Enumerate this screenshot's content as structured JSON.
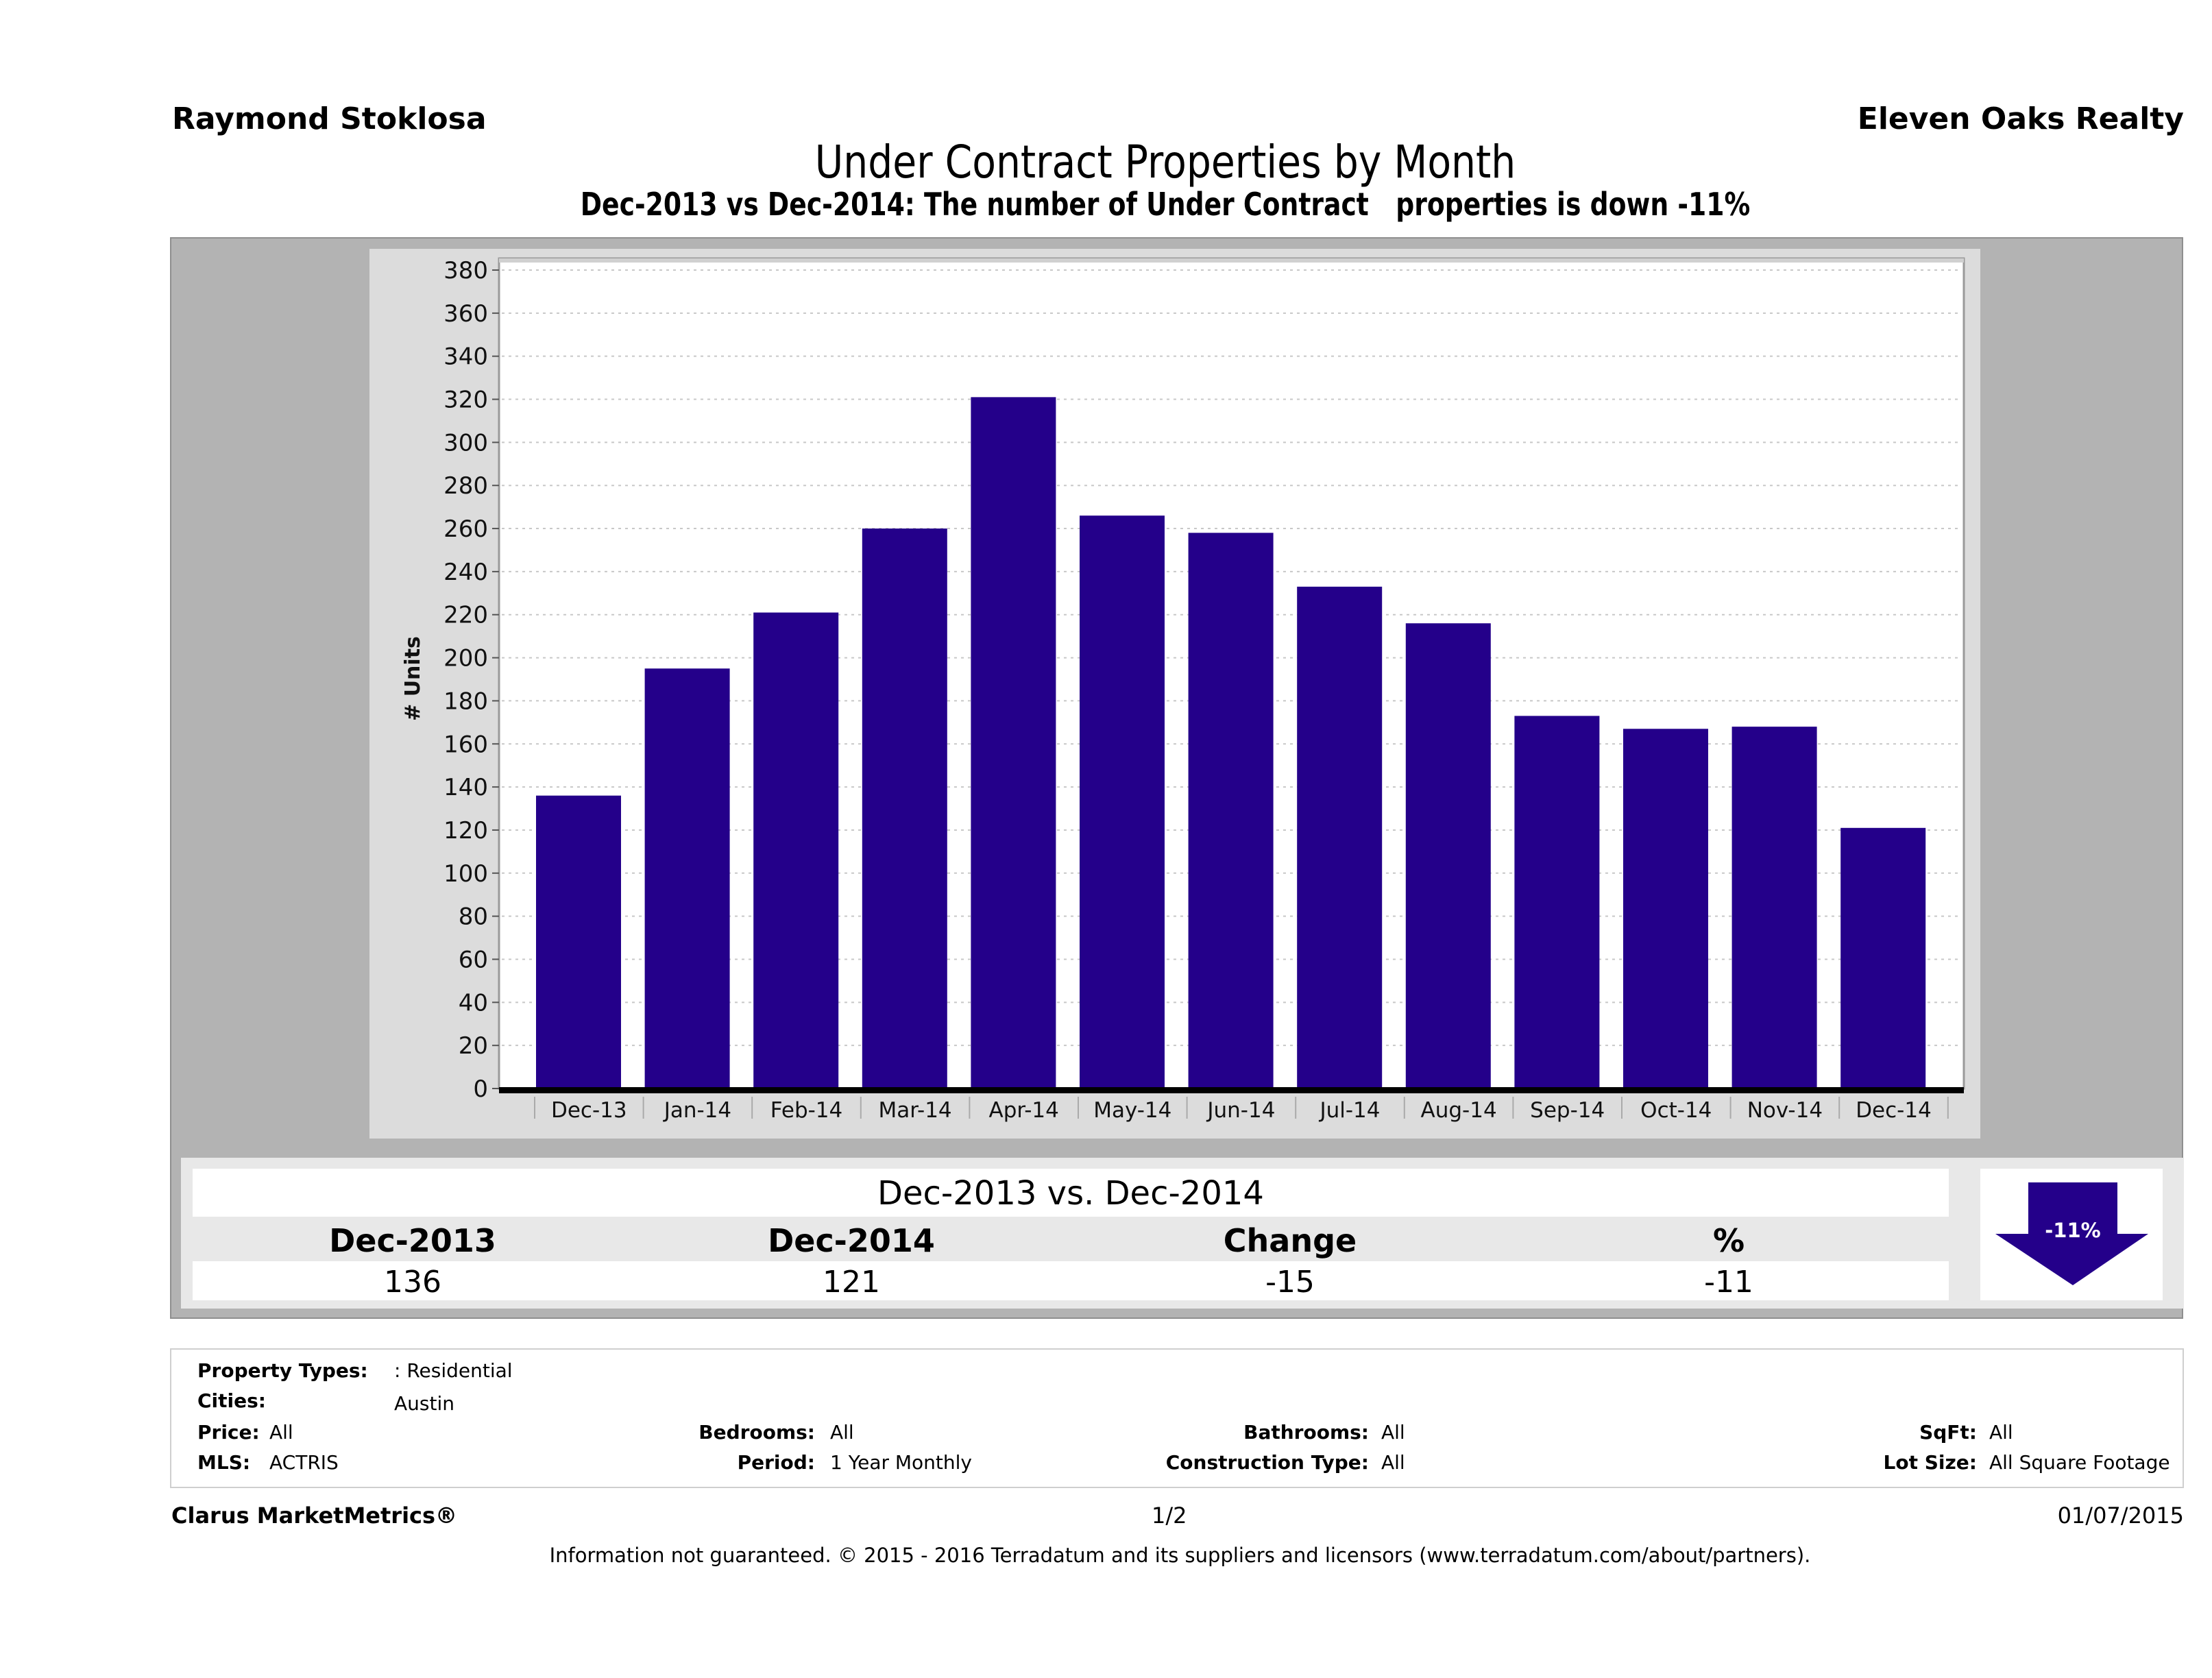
{
  "header": {
    "agent": "Raymond Stoklosa",
    "brokerage": "Eleven Oaks Realty",
    "title": "Under Contract Properties by Month",
    "subtitle": "Dec-2013 vs Dec-2014: The number of Under Contract   properties is down -11%"
  },
  "colors": {
    "bar": "#24008a",
    "frame": "#b3b3b3",
    "chart_panel": "#dcdcdc",
    "summary_panel": "#e8e8e8"
  },
  "chart_data": {
    "type": "bar",
    "title": "Under Contract Properties by Month",
    "xlabel": "",
    "ylabel": "# Units",
    "ylim": [
      0,
      380
    ],
    "yticks": [
      0,
      20,
      40,
      60,
      80,
      100,
      120,
      140,
      160,
      180,
      200,
      220,
      240,
      260,
      280,
      300,
      320,
      340,
      360,
      380
    ],
    "grid": true,
    "legend": "none",
    "categories": [
      "Dec-13",
      "Jan-14",
      "Feb-14",
      "Mar-14",
      "Apr-14",
      "May-14",
      "Jun-14",
      "Jul-14",
      "Aug-14",
      "Sep-14",
      "Oct-14",
      "Nov-14",
      "Dec-14"
    ],
    "values": [
      136,
      195,
      221,
      260,
      321,
      266,
      258,
      233,
      216,
      173,
      167,
      168,
      121
    ]
  },
  "summary": {
    "title": "Dec-2013 vs. Dec-2014",
    "columns": [
      "Dec-2013",
      "Dec-2014",
      "Change",
      "%"
    ],
    "values": [
      "136",
      "121",
      "-15",
      "-11"
    ],
    "badge": {
      "direction": "down",
      "label": "-11%",
      "icon": "down-arrow-icon"
    }
  },
  "filters": {
    "property_types": {
      "label": "Property Types:",
      "value": ": Residential"
    },
    "cities": {
      "label": "Cities:",
      "value": "Austin"
    },
    "price": {
      "label": "Price:",
      "value": "All"
    },
    "mls": {
      "label": "MLS:",
      "value": "ACTRIS"
    },
    "bedrooms": {
      "label": "Bedrooms:",
      "value": "All"
    },
    "period": {
      "label": "Period:",
      "value": "1 Year Monthly"
    },
    "bathrooms": {
      "label": "Bathrooms:",
      "value": "All"
    },
    "construction_type": {
      "label": "Construction Type:",
      "value": "All"
    },
    "sqft": {
      "label": "SqFt:",
      "value": "All"
    },
    "lot_size": {
      "label": "Lot Size:",
      "value": "All Square Footage"
    }
  },
  "footer": {
    "product": "Clarus MarketMetrics®",
    "page": "1/2",
    "date": "01/07/2015",
    "disclaimer": "Information not guaranteed. © 2015 - 2016 Terradatum and its suppliers and licensors (www.terradatum.com/about/partners)."
  }
}
